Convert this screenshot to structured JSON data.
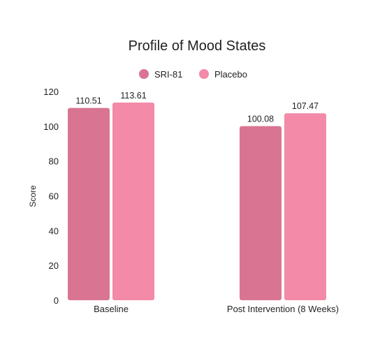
{
  "chart_data": {
    "type": "bar",
    "title": "Profile of Mood States",
    "ylabel": "Score",
    "xlabel": "",
    "categories": [
      "Baseline",
      "Post Intervention (8 Weeks)"
    ],
    "series": [
      {
        "name": "SRI-81",
        "values": [
          110.51,
          100.08
        ],
        "color": "#d97593"
      },
      {
        "name": "Placebo",
        "values": [
          113.61,
          107.47
        ],
        "color": "#f28aa8"
      }
    ],
    "data_labels": [
      [
        "110.51",
        "100.08"
      ],
      [
        "113.61",
        "107.47"
      ]
    ],
    "ylim": [
      0,
      120
    ],
    "yticks": [
      "0",
      "20",
      "40",
      "60",
      "80",
      "100",
      "120"
    ],
    "grid": false,
    "legend": "top-center"
  }
}
